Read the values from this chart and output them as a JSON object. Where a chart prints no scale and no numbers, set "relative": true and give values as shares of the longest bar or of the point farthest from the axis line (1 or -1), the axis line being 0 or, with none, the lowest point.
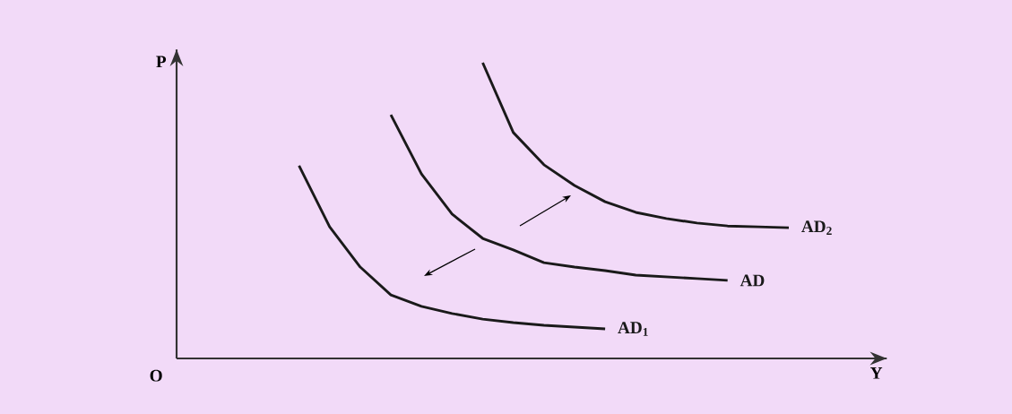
{
  "chart_data": {
    "type": "line",
    "relative": true,
    "xlabel": "Y",
    "annotations": [
      "P",
      "O"
    ],
    "line_style": "solid",
    "categories": [
      null,
      null,
      null,
      null,
      null,
      null,
      null,
      null,
      null,
      null,
      null,
      null,
      null,
      null,
      null,
      null,
      null
    ],
    "series": [
      {
        "name": "AD$_{1}$",
        "color": "#1a1a1a",
        "values": [
          0.652,
          0.445,
          0.309,
          0.215,
          0.176,
          0.152,
          0.133,
          0.121,
          0.112,
          0.106,
          0.1,
          null,
          null,
          null,
          null,
          null,
          null
        ]
      },
      {
        "name": "AD",
        "color": "#1a1a1a",
        "values": [
          null,
          null,
          null,
          0.824,
          0.624,
          0.488,
          0.406,
          0.367,
          0.324,
          0.309,
          0.297,
          0.282,
          0.276,
          0.27,
          0.264,
          null,
          null
        ]
      },
      {
        "name": "AD$_{2}$",
        "color": "#1a1a1a",
        "values": [
          null,
          null,
          null,
          null,
          null,
          null,
          1.0,
          0.764,
          0.655,
          0.585,
          0.53,
          0.494,
          0.473,
          0.458,
          0.448,
          0.445,
          0.442
        ]
      }
    ]
  }
}
